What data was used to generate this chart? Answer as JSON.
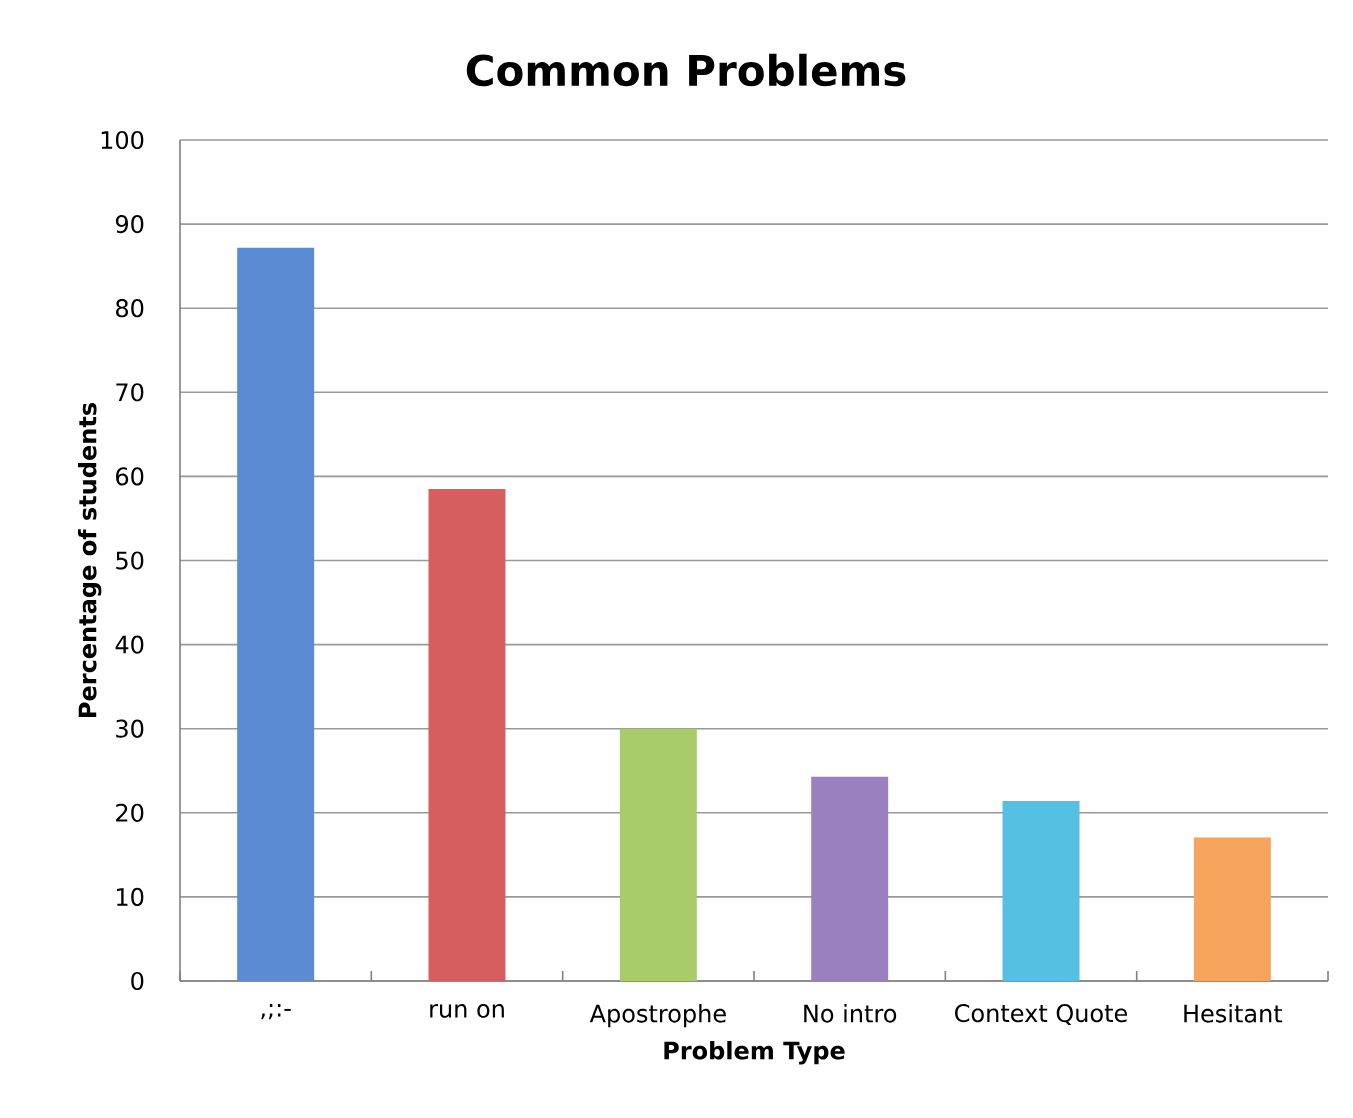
{
  "chart_data": {
    "type": "bar",
    "title": "Common Problems",
    "xlabel": "Problem Type",
    "ylabel": "Percentage of students",
    "categories": [
      ",;:-",
      "run on",
      "Apostrophe",
      "No intro",
      "Context Quote",
      "Hesitant"
    ],
    "values": [
      87.2,
      58.5,
      30,
      24.3,
      21.4,
      17.1
    ],
    "colors": [
      "#5b8bd3",
      "#d65e5e",
      "#a9cc6a",
      "#9a80bf",
      "#55c0e2",
      "#f7a45c"
    ],
    "ylim": [
      0,
      100
    ],
    "yticks": [
      0,
      10,
      20,
      30,
      40,
      50,
      60,
      70,
      80,
      90,
      100
    ],
    "grid": "y"
  }
}
